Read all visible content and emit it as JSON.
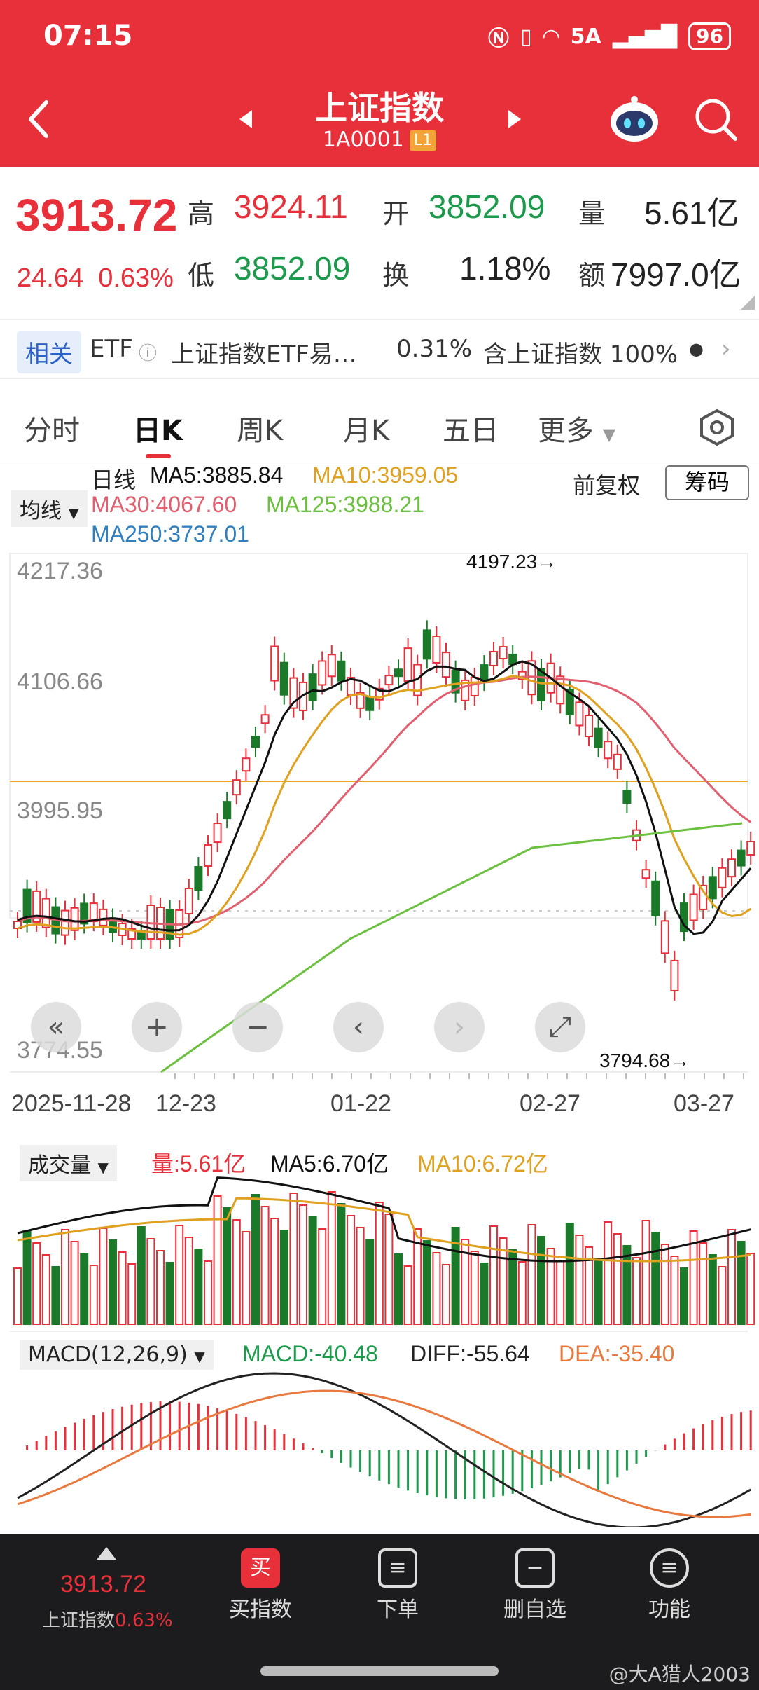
{
  "status": {
    "time": "07:15",
    "network": "5A",
    "battery": "96"
  },
  "header": {
    "title": "上证指数",
    "code": "1A0001",
    "level": "L1"
  },
  "quote": {
    "price": "3913.72",
    "change": "24.64",
    "change_pct": "0.63%",
    "high_label": "高",
    "high": "3924.11",
    "open_label": "开",
    "open": "3852.09",
    "vol_label": "量",
    "vol": "5.61亿",
    "low_label": "低",
    "low": "3852.09",
    "turnover_label": "换",
    "turnover": "1.18%",
    "amount_label": "额",
    "amount": "7997.0亿"
  },
  "etf": {
    "tag": "相关",
    "etf_label": "ETF",
    "name": "上证指数ETF易…",
    "pct": "0.31%",
    "contains": "含上证指数 100%"
  },
  "tabs": [
    "分时",
    "日K",
    "周K",
    "月K",
    "五日",
    "更多"
  ],
  "kline": {
    "indicator_select": "均线",
    "line_label": "日线",
    "ma5": "MA5:3885.84",
    "ma10": "MA10:3959.05",
    "ma30": "MA30:4067.60",
    "ma125": "MA125:3988.21",
    "ma250": "MA250:3737.01",
    "fq": "前复权",
    "chip": "筹码",
    "y_ticks": [
      "4217.36",
      "4106.66",
      "3995.95",
      "3774.55"
    ],
    "high_mark": "4197.23",
    "low_mark": "3794.68",
    "dates": [
      "2025-11-28",
      "12-23",
      "01-22",
      "02-27",
      "03-27"
    ]
  },
  "volume": {
    "select": "成交量",
    "v": "量:5.61亿",
    "ma5": "MA5:6.70亿",
    "ma10": "MA10:6.72亿"
  },
  "macd": {
    "select": "MACD(12,26,9)",
    "macd": "MACD:-40.48",
    "diff": "DIFF:-55.64",
    "dea": "DEA:-35.40"
  },
  "bottom_nav": {
    "price": "3913.72",
    "name": "上证指数",
    "pct": "0.63%",
    "items": [
      "买指数",
      "下单",
      "删自选",
      "功能"
    ]
  },
  "watermark": "@大A猎人2003",
  "colors": {
    "up": "#e8303b",
    "down": "#1a7a2a",
    "ma5": "#111111",
    "ma10": "#e0a020",
    "ma30": "#e06070",
    "ma125": "#6cc040",
    "ma250": "#3080c0"
  }
}
